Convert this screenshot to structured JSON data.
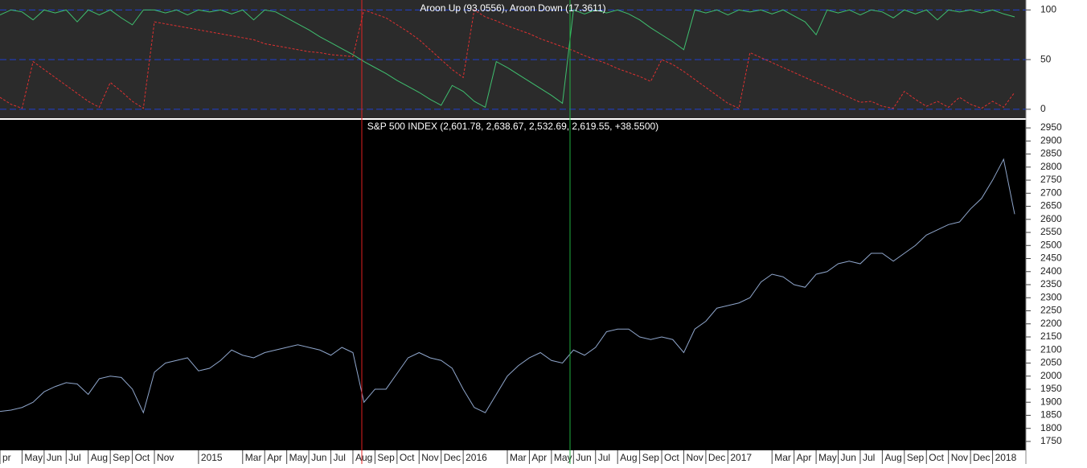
{
  "chart_data": [
    {
      "type": "line",
      "title": "Aroon Up (93.0556), Aroon Down (17.3611)",
      "series": [
        {
          "color": "#3fbf6f",
          "dashed": false,
          "values": [
            95,
            100,
            98,
            90,
            100,
            97,
            100,
            88,
            100,
            95,
            100,
            92,
            85,
            100,
            100,
            97,
            100,
            95,
            100,
            98,
            100,
            96,
            100,
            90,
            100,
            98,
            92,
            86,
            80,
            73,
            67,
            61,
            55,
            48,
            42,
            36,
            29,
            23,
            17,
            10,
            4,
            24,
            18,
            8,
            2,
            48,
            42,
            35,
            28,
            21,
            14,
            6,
            100,
            96,
            100,
            97,
            100,
            96,
            90,
            82,
            75,
            68,
            60,
            100,
            97,
            100,
            95,
            100,
            98,
            100,
            96,
            100,
            94,
            88,
            75,
            100,
            97,
            100,
            95,
            100,
            98,
            92,
            100,
            96,
            100,
            90,
            100,
            98,
            100,
            97,
            100,
            96,
            93
          ]
        },
        {
          "color": "#e03030",
          "dashed": true,
          "values": [
            12,
            5,
            1,
            48,
            40,
            32,
            24,
            16,
            8,
            2,
            27,
            18,
            8,
            1,
            88,
            86,
            84,
            82,
            80,
            78,
            76,
            74,
            72,
            70,
            66,
            64,
            62,
            60,
            58,
            57,
            55,
            54,
            53,
            100,
            96,
            92,
            85,
            78,
            70,
            60,
            50,
            40,
            32,
            100,
            93,
            89,
            84,
            80,
            76,
            71,
            67,
            63,
            59,
            54,
            50,
            46,
            41,
            37,
            33,
            28,
            50,
            45,
            38,
            30,
            22,
            14,
            6,
            1,
            57,
            52,
            47,
            42,
            37,
            32,
            27,
            22,
            17,
            12,
            7,
            8,
            3,
            1,
            18,
            10,
            3,
            8,
            2,
            12,
            5,
            1,
            8,
            2,
            17
          ]
        }
      ],
      "ylim": [
        -9,
        110
      ],
      "yticks": [
        0,
        50,
        100
      ],
      "grid": true
    },
    {
      "type": "line",
      "title": "S&P 500 INDEX (2,601.78, 2,638.67, 2,532.69, 2,619.55, +38.5500)",
      "categories": [
        "pr",
        null,
        "May",
        null,
        "Jun",
        null,
        "Jul",
        null,
        "Aug",
        null,
        "Sep",
        null,
        "Oct",
        null,
        "Nov",
        null,
        null,
        null,
        "2015",
        null,
        null,
        null,
        "Mar",
        null,
        "Apr",
        null,
        "May",
        null,
        "Jun",
        null,
        "Jul",
        null,
        "Aug",
        null,
        "Sep",
        null,
        "Oct",
        null,
        "Nov",
        null,
        "Dec",
        null,
        "2016",
        null,
        null,
        null,
        "Mar",
        null,
        "Apr",
        null,
        "May",
        null,
        "Jun",
        null,
        "Jul",
        null,
        "Aug",
        null,
        "Sep",
        null,
        "Oct",
        null,
        "Nov",
        null,
        "Dec",
        null,
        "2017",
        null,
        null,
        null,
        "Mar",
        null,
        "Apr",
        null,
        "May",
        null,
        "Jun",
        null,
        "Jul",
        null,
        "Aug",
        null,
        "Sep",
        null,
        "Oct",
        null,
        "Nov",
        null,
        "Dec",
        null,
        "2018",
        null,
        null
      ],
      "series": [
        {
          "color": "#8fa6cc",
          "values": [
            1865,
            1870,
            1880,
            1900,
            1940,
            1960,
            1975,
            1970,
            1930,
            1990,
            2000,
            1995,
            1950,
            1860,
            2015,
            2050,
            2060,
            2070,
            2020,
            2030,
            2060,
            2100,
            2080,
            2070,
            2090,
            2100,
            2110,
            2120,
            2110,
            2100,
            2080,
            2110,
            2090,
            1900,
            1950,
            1950,
            2010,
            2070,
            2090,
            2070,
            2060,
            2030,
            1950,
            1880,
            1860,
            1930,
            2000,
            2040,
            2070,
            2090,
            2060,
            2050,
            2100,
            2080,
            2110,
            2170,
            2180,
            2180,
            2150,
            2140,
            2150,
            2140,
            2090,
            2180,
            2210,
            2260,
            2270,
            2280,
            2300,
            2360,
            2390,
            2380,
            2350,
            2340,
            2390,
            2400,
            2430,
            2440,
            2430,
            2470,
            2470,
            2440,
            2470,
            2500,
            2540,
            2560,
            2580,
            2590,
            2640,
            2680,
            2750,
            2830,
            2620
          ]
        }
      ],
      "ylim": [
        1716,
        2981
      ],
      "yticks": [
        1750,
        1800,
        1850,
        1900,
        1950,
        2000,
        2050,
        2100,
        2150,
        2200,
        2250,
        2300,
        2350,
        2400,
        2450,
        2500,
        2550,
        2600,
        2650,
        2700,
        2750,
        2800,
        2850,
        2900,
        2950
      ],
      "grid": false
    }
  ]
}
